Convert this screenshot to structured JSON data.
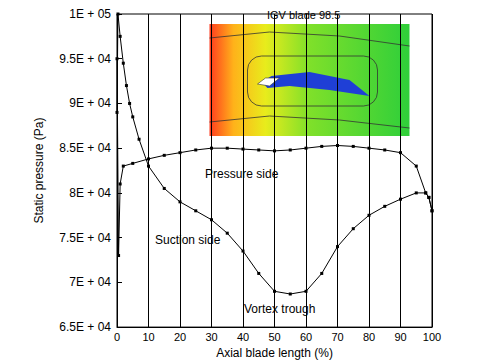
{
  "chart_data": {
    "type": "line",
    "title": "IGV blade 98.5",
    "x_label": "Axial blade length (%)",
    "y_label": "Static pressure (Pa)",
    "xlim": [
      0,
      100
    ],
    "xticks": [
      0,
      10,
      20,
      30,
      40,
      50,
      60,
      70,
      80,
      90,
      100
    ],
    "ylim": [
      65000,
      100000
    ],
    "yticks": [
      {
        "value": 65000,
        "label": "6.5E + 04"
      },
      {
        "value": 70000,
        "label": "7E + 04"
      },
      {
        "value": 75000,
        "label": "7.5E + 04"
      },
      {
        "value": 80000,
        "label": "8E + 04"
      },
      {
        "value": 85000,
        "label": "8.5E + 04"
      },
      {
        "value": 90000,
        "label": "9E + 04"
      },
      {
        "value": 95000,
        "label": "9.5E + 04"
      },
      {
        "value": 100000,
        "label": "1E + 05"
      }
    ],
    "grid": "x",
    "annotations": [
      "Pressure side",
      "Suction side",
      "Vortex trough"
    ],
    "series": [
      {
        "color": "#000000",
        "marker": "square",
        "line_style": "solid",
        "x": [
          0,
          0.5,
          1,
          2,
          5,
          10,
          15,
          20,
          25,
          30,
          35,
          40,
          45,
          50,
          55,
          60,
          65,
          70,
          75,
          80,
          85,
          90,
          95,
          98,
          99,
          100
        ],
        "values": [
          95000,
          73000,
          81000,
          83000,
          83300,
          83800,
          84200,
          84500,
          84800,
          85000,
          85000,
          84900,
          84800,
          84700,
          84800,
          85000,
          85200,
          85300,
          85200,
          85000,
          84800,
          84500,
          83000,
          80000,
          79500,
          78000
        ]
      },
      {
        "color": "#000000",
        "marker": "square",
        "line_style": "solid",
        "x": [
          0,
          0.3,
          1,
          2,
          3,
          4,
          5,
          7,
          10,
          15,
          20,
          25,
          30,
          35,
          40,
          45,
          50,
          55,
          60,
          65,
          70,
          75,
          80,
          85,
          90,
          95,
          98,
          99,
          100
        ],
        "values": [
          89000,
          100000,
          97500,
          94500,
          92000,
          90000,
          88500,
          86000,
          83000,
          80500,
          79000,
          78000,
          77000,
          75500,
          73500,
          71000,
          69000,
          68700,
          69000,
          71000,
          74000,
          76000,
          77500,
          78500,
          79300,
          80000,
          80000,
          79500,
          78000
        ]
      }
    ]
  }
}
